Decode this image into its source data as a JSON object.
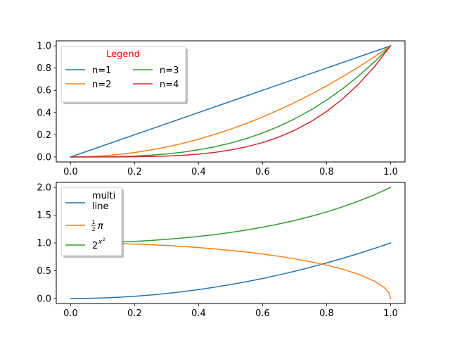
{
  "colors": {
    "blue": "#1f77b4",
    "orange": "#ff7f0e",
    "green": "#2ca02c",
    "red": "#d62728",
    "legend_title": "#ff0000"
  },
  "chart_data": [
    {
      "type": "line",
      "title": "",
      "xlabel": "",
      "ylabel": "",
      "xlim": [
        0.0,
        1.0
      ],
      "ylim": [
        0.0,
        1.0
      ],
      "x_ticks": [
        0.0,
        0.2,
        0.4,
        0.6,
        0.8,
        1.0
      ],
      "y_ticks": [
        0.0,
        0.2,
        0.4,
        0.6,
        0.8,
        1.0
      ],
      "x_tick_labels": [
        "0.0",
        "0.2",
        "0.4",
        "0.6",
        "0.8",
        "1.0"
      ],
      "y_tick_labels": [
        "0.0",
        "0.2",
        "0.4",
        "0.6",
        "0.8",
        "1.0"
      ],
      "grid": false,
      "legend": {
        "title": "Legend",
        "placement": "upper-left",
        "columns": 2,
        "shadow": true
      },
      "x": [
        0,
        0.05,
        0.1,
        0.15,
        0.2,
        0.25,
        0.3,
        0.35,
        0.4,
        0.45,
        0.5,
        0.55,
        0.6,
        0.65,
        0.7,
        0.75,
        0.8,
        0.85,
        0.9,
        0.95,
        1.0
      ],
      "series": [
        {
          "name": "n=1",
          "color": "#1f77b4",
          "values": [
            0,
            0.05,
            0.1,
            0.15,
            0.2,
            0.25,
            0.3,
            0.35,
            0.4,
            0.45,
            0.5,
            0.55,
            0.6,
            0.65,
            0.7,
            0.75,
            0.8,
            0.85,
            0.9,
            0.95,
            1.0
          ]
        },
        {
          "name": "n=2",
          "color": "#ff7f0e",
          "values": [
            0,
            0.0025,
            0.01,
            0.0225,
            0.04,
            0.0625,
            0.09,
            0.1225,
            0.16,
            0.2025,
            0.25,
            0.3025,
            0.36,
            0.4225,
            0.49,
            0.5625,
            0.64,
            0.7225,
            0.81,
            0.9025,
            1.0
          ]
        },
        {
          "name": "n=3",
          "color": "#2ca02c",
          "values": [
            0,
            0.000125,
            0.001,
            0.003375,
            0.008,
            0.015625,
            0.027,
            0.042875,
            0.064,
            0.091125,
            0.125,
            0.166375,
            0.216,
            0.274625,
            0.343,
            0.421875,
            0.512,
            0.614125,
            0.729,
            0.857375,
            1.0
          ]
        },
        {
          "name": "n=4",
          "color": "#d62728",
          "values": [
            0,
            6.3e-06,
            0.0001,
            0.0005063,
            0.0016,
            0.0039063,
            0.0081,
            0.0150063,
            0.0256,
            0.0410063,
            0.0625,
            0.0915063,
            0.1296,
            0.1785063,
            0.2401,
            0.3164063,
            0.4096,
            0.5220063,
            0.6561,
            0.8145063,
            1.0
          ]
        }
      ]
    },
    {
      "type": "line",
      "title": "",
      "xlabel": "",
      "ylabel": "",
      "xlim": [
        0.0,
        1.0
      ],
      "ylim": [
        0.0,
        2.0
      ],
      "x_ticks": [
        0.0,
        0.2,
        0.4,
        0.6,
        0.8,
        1.0
      ],
      "y_ticks": [
        0.0,
        0.5,
        1.0,
        1.5,
        2.0
      ],
      "x_tick_labels": [
        "0.0",
        "0.2",
        "0.4",
        "0.6",
        "0.8",
        "1.0"
      ],
      "y_tick_labels": [
        "0.0",
        "0.5",
        "1.0",
        "1.5",
        "2.0"
      ],
      "grid": false,
      "legend": {
        "placement": "upper-left",
        "columns": 1,
        "shadow": true
      },
      "x": [
        0,
        0.05,
        0.1,
        0.15,
        0.2,
        0.25,
        0.3,
        0.35,
        0.4,
        0.45,
        0.5,
        0.55,
        0.6,
        0.65,
        0.7,
        0.75,
        0.8,
        0.85,
        0.9,
        0.95,
        0.98,
        0.995,
        1.0
      ],
      "series": [
        {
          "name": "multi\nline",
          "name_lines": [
            "multi",
            "line"
          ],
          "color": "#1f77b4",
          "values": [
            0,
            0.0025,
            0.01,
            0.0225,
            0.04,
            0.0625,
            0.09,
            0.1225,
            0.16,
            0.2025,
            0.25,
            0.3025,
            0.36,
            0.4225,
            0.49,
            0.5625,
            0.64,
            0.7225,
            0.81,
            0.9025,
            0.9604,
            0.99,
            1.0
          ]
        },
        {
          "name": "½π",
          "label_parts": {
            "numerator": "1",
            "denominator": "2",
            "symbol": "π"
          },
          "color": "#ff7f0e",
          "values": [
            1.0,
            0.9987,
            0.995,
            0.9887,
            0.9798,
            0.9682,
            0.9539,
            0.9367,
            0.9165,
            0.893,
            0.866,
            0.8352,
            0.8,
            0.76,
            0.7141,
            0.6614,
            0.6,
            0.5268,
            0.4359,
            0.3122,
            0.199,
            0.0999,
            0.0
          ]
        },
        {
          "name": "2^(x²)",
          "label_parts": {
            "base": "2",
            "exponent": "x",
            "exponent_power": "2"
          },
          "color": "#2ca02c",
          "values": [
            1.0,
            1.0017,
            1.007,
            1.0157,
            1.0281,
            1.0443,
            1.0644,
            1.0887,
            1.1173,
            1.1507,
            1.1892,
            1.2333,
            1.2834,
            1.3402,
            1.4044,
            1.4768,
            1.5583,
            1.6499,
            1.7528,
            1.8682,
            1.9459,
            1.9862,
            2.0
          ]
        }
      ]
    }
  ]
}
